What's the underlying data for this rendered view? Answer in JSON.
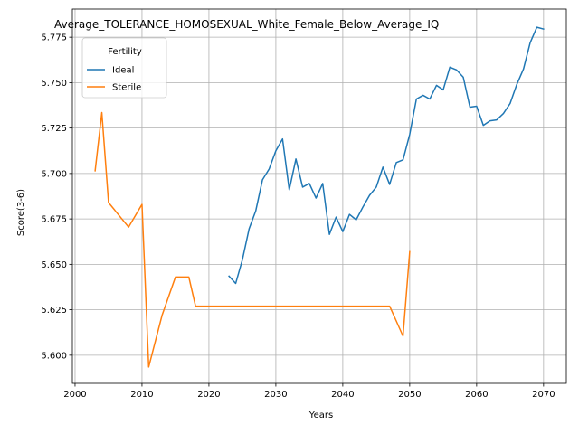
{
  "chart_data": {
    "type": "line",
    "title": "Average_TOLERANCE_HOMOSEXUAL_White_Female_Below_Average_IQ",
    "xlabel": "Years",
    "ylabel": "Score(3-6)",
    "xlim": [
      1999.6,
      2073.4
    ],
    "ylim": [
      5.5845,
      5.7905
    ],
    "xticks": [
      2000,
      2010,
      2020,
      2030,
      2040,
      2050,
      2060,
      2070
    ],
    "xtick_labels": [
      "2000",
      "2010",
      "2020",
      "2030",
      "2040",
      "2050",
      "2060",
      "2070"
    ],
    "yticks": [
      5.6,
      5.625,
      5.65,
      5.675,
      5.7,
      5.725,
      5.75,
      5.775
    ],
    "ytick_labels": [
      "5.600",
      "5.625",
      "5.650",
      "5.675",
      "5.700",
      "5.725",
      "5.750",
      "5.775"
    ],
    "grid": true,
    "legend": {
      "title": "Fertility",
      "position": "top-left"
    },
    "series": [
      {
        "name": "Ideal",
        "color": "#1f77b4",
        "x": [
          2023,
          2024,
          2025,
          2026,
          2027,
          2028,
          2029,
          2030,
          2031,
          2032,
          2033,
          2034,
          2035,
          2036,
          2037,
          2038,
          2039,
          2040,
          2041,
          2042,
          2043,
          2044,
          2045,
          2046,
          2047,
          2048,
          2049,
          2050,
          2051,
          2052,
          2053,
          2054,
          2055,
          2056,
          2057,
          2058,
          2059,
          2060,
          2061,
          2062,
          2063,
          2064,
          2065,
          2066,
          2067,
          2068,
          2069,
          2070
        ],
        "y": [
          5.6435,
          5.6395,
          5.6525,
          5.6695,
          5.6795,
          5.6965,
          5.7025,
          5.7125,
          5.719,
          5.691,
          5.708,
          5.6925,
          5.6945,
          5.6865,
          5.6945,
          5.6665,
          5.676,
          5.668,
          5.6775,
          5.6745,
          5.6815,
          5.688,
          5.6925,
          5.7035,
          5.694,
          5.706,
          5.7075,
          5.7215,
          5.741,
          5.743,
          5.741,
          5.7485,
          5.746,
          5.7585,
          5.757,
          5.753,
          5.7365,
          5.737,
          5.7265,
          5.729,
          5.7295,
          5.733,
          5.7385,
          5.749,
          5.7575,
          5.772,
          5.7805,
          5.7795
        ]
      },
      {
        "name": "Sterile",
        "color": "#ff7f0e",
        "x": [
          2003,
          2004,
          2005,
          2008,
          2010,
          2011,
          2013,
          2015,
          2017,
          2018,
          2020,
          2025,
          2030,
          2035,
          2040,
          2045,
          2047,
          2049,
          2050
        ],
        "y": [
          5.7015,
          5.7335,
          5.684,
          5.6705,
          5.683,
          5.5935,
          5.622,
          5.643,
          5.643,
          5.627,
          5.627,
          5.627,
          5.627,
          5.627,
          5.627,
          5.627,
          5.627,
          5.6105,
          5.657
        ]
      }
    ]
  }
}
